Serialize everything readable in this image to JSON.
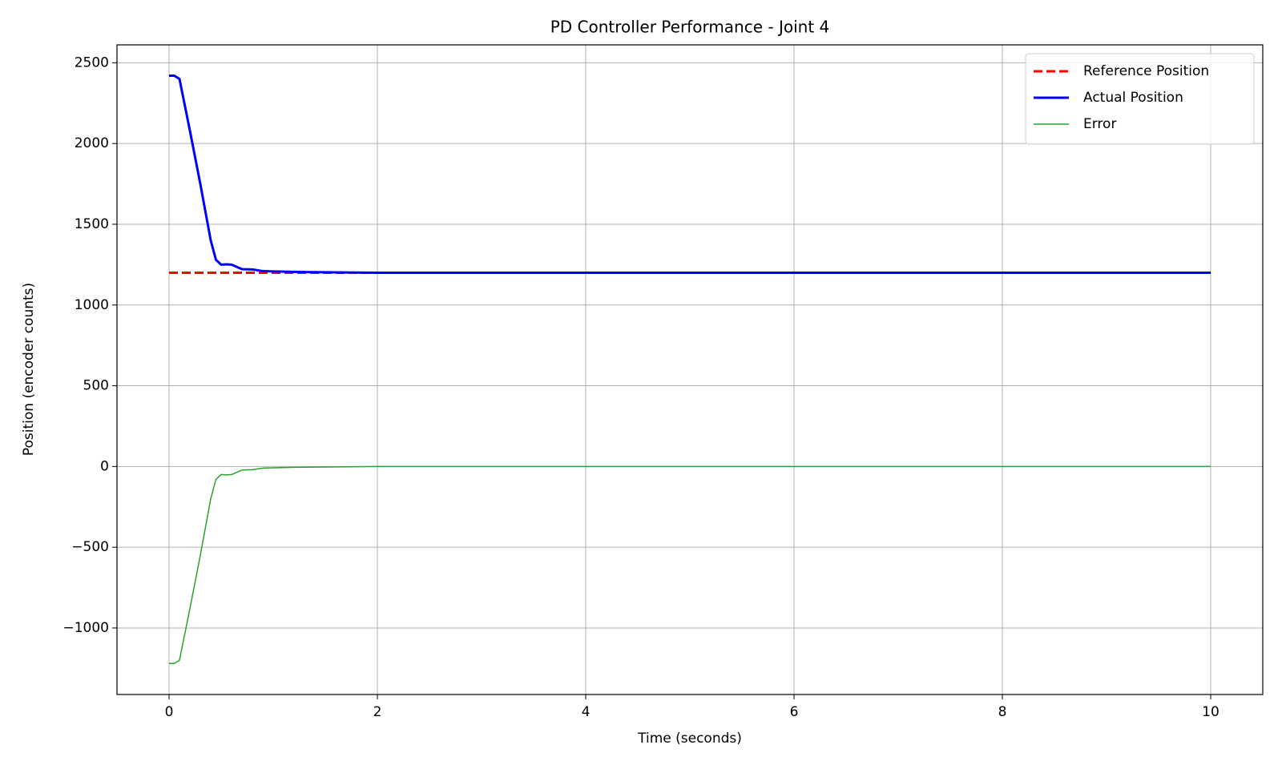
{
  "chart_data": {
    "type": "line",
    "title": "PD Controller Performance - Joint 4",
    "x_label": "Time (seconds)",
    "y_label": "Position (encoder counts)",
    "x": [
      0,
      0.05,
      0.1,
      0.2,
      0.3,
      0.4,
      0.45,
      0.5,
      0.55,
      0.6,
      0.7,
      0.8,
      0.9,
      1.0,
      1.2,
      1.5,
      2,
      3,
      4,
      5,
      6,
      7,
      8,
      9,
      10
    ],
    "series": [
      {
        "name": "Reference Position",
        "color": "#ff0000",
        "linestyle": "dashed",
        "linewidth": 3,
        "values": [
          1200,
          1200,
          1200,
          1200,
          1200,
          1200,
          1200,
          1200,
          1200,
          1200,
          1200,
          1200,
          1200,
          1200,
          1200,
          1200,
          1200,
          1200,
          1200,
          1200,
          1200,
          1200,
          1200,
          1200,
          1200
        ]
      },
      {
        "name": "Actual Position",
        "color": "#0000ff",
        "linestyle": "solid",
        "linewidth": 3,
        "values": [
          2420,
          2420,
          2400,
          2080,
          1750,
          1400,
          1280,
          1250,
          1252,
          1250,
          1222,
          1220,
          1210,
          1208,
          1205,
          1203,
          1200,
          1200,
          1200,
          1200,
          1200,
          1200,
          1200,
          1200,
          1200
        ]
      },
      {
        "name": "Error",
        "color": "#2ca02c",
        "linestyle": "solid",
        "linewidth": 1.5,
        "values": [
          -1220,
          -1220,
          -1200,
          -880,
          -550,
          -200,
          -80,
          -50,
          -52,
          -50,
          -22,
          -20,
          -10,
          -8,
          -5,
          -3,
          0,
          0,
          0,
          0,
          0,
          0,
          0,
          0,
          0
        ]
      }
    ],
    "xlim": [
      -0.5,
      10.5
    ],
    "xticks": [
      0,
      2,
      4,
      6,
      8,
      10
    ],
    "ylim": [
      -1412,
      2611
    ],
    "yticks": [
      {
        "value": -1000,
        "label": "−1000"
      },
      {
        "value": -500,
        "label": "−500"
      },
      0,
      500,
      1000,
      1500,
      2000,
      2500
    ],
    "grid": true,
    "legend": "upper right"
  }
}
